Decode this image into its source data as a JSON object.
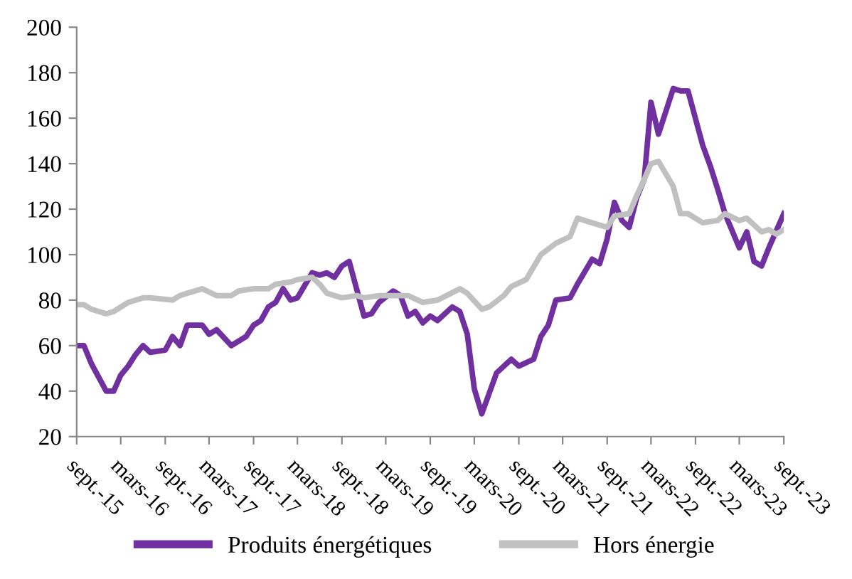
{
  "chart_data": {
    "type": "line",
    "xlim": [
      "2015-09",
      "2023-09"
    ],
    "xticks": [
      {
        "value": "2015-09",
        "label": "sept.-15"
      },
      {
        "value": "2016-03",
        "label": "mars-16"
      },
      {
        "value": "2016-09",
        "label": "sept.-16"
      },
      {
        "value": "2017-03",
        "label": "mars-17"
      },
      {
        "value": "2017-09",
        "label": "sept.-17"
      },
      {
        "value": "2018-03",
        "label": "mars-18"
      },
      {
        "value": "2018-09",
        "label": "sept.-18"
      },
      {
        "value": "2019-03",
        "label": "mars-19"
      },
      {
        "value": "2019-09",
        "label": "sept.-19"
      },
      {
        "value": "2020-03",
        "label": "mars-20"
      },
      {
        "value": "2020-09",
        "label": "sept.-20"
      },
      {
        "value": "2021-03",
        "label": "mars-21"
      },
      {
        "value": "2021-09",
        "label": "sept.-21"
      },
      {
        "value": "2022-03",
        "label": "mars-22"
      },
      {
        "value": "2022-09",
        "label": "sept.-22"
      },
      {
        "value": "2023-03",
        "label": "mars-23"
      },
      {
        "value": "2023-09",
        "label": "sept.-23"
      }
    ],
    "ylim": [
      20,
      200
    ],
    "yticks": [
      20,
      40,
      60,
      80,
      100,
      120,
      140,
      160,
      180,
      200
    ],
    "grid": false,
    "legend": "bottom",
    "marker": "none",
    "line_style": "solid",
    "series": [
      {
        "name": "Produits énergétiques",
        "color": "#7030a0",
        "x": [
          "2015-09",
          "2015-10",
          "2015-11",
          "2016-01",
          "2016-02",
          "2016-03",
          "2016-04",
          "2016-05",
          "2016-06",
          "2016-07",
          "2016-09",
          "2016-10",
          "2016-11",
          "2016-12",
          "2017-02",
          "2017-03",
          "2017-04",
          "2017-06",
          "2017-08",
          "2017-09",
          "2017-10",
          "2017-11",
          "2017-12",
          "2018-01",
          "2018-02",
          "2018-03",
          "2018-05",
          "2018-06",
          "2018-07",
          "2018-08",
          "2018-09",
          "2018-10",
          "2018-12",
          "2019-01",
          "2019-02",
          "2019-04",
          "2019-05",
          "2019-06",
          "2019-07",
          "2019-08",
          "2019-09",
          "2019-10",
          "2019-12",
          "2020-01",
          "2020-02",
          "2020-03",
          "2020-04",
          "2020-06",
          "2020-08",
          "2020-09",
          "2020-11",
          "2020-12",
          "2021-01",
          "2021-02",
          "2021-04",
          "2021-05",
          "2021-07",
          "2021-08",
          "2021-09",
          "2021-10",
          "2021-11",
          "2021-12",
          "2022-01",
          "2022-02",
          "2022-03",
          "2022-04",
          "2022-06",
          "2022-07",
          "2022-08",
          "2022-10",
          "2022-11",
          "2022-12",
          "2023-01",
          "2023-03",
          "2023-04",
          "2023-05",
          "2023-06",
          "2023-07",
          "2023-09"
        ],
        "values": [
          60,
          60,
          52,
          40,
          40,
          47,
          51,
          56,
          60,
          57,
          58,
          64,
          60,
          69,
          69,
          65,
          67,
          60,
          64,
          69,
          71,
          77,
          79,
          85,
          80,
          81,
          92,
          91,
          92,
          90,
          95,
          97,
          73,
          74,
          79,
          84,
          82,
          73,
          75,
          70,
          73,
          71,
          77,
          75,
          65,
          41,
          30,
          48,
          54,
          51,
          54,
          64,
          69,
          80,
          81,
          87,
          98,
          96,
          107,
          123,
          115,
          112,
          125,
          133,
          167,
          153,
          173,
          172,
          172,
          148,
          139,
          129,
          118,
          103,
          110,
          97,
          95,
          103,
          118
        ]
      },
      {
        "name": "Hors énergie",
        "color": "#c0c0c0",
        "x": [
          "2015-09",
          "2015-10",
          "2015-11",
          "2016-01",
          "2016-02",
          "2016-04",
          "2016-06",
          "2016-07",
          "2016-10",
          "2016-11",
          "2016-12",
          "2017-02",
          "2017-04",
          "2017-06",
          "2017-07",
          "2017-09",
          "2017-11",
          "2017-12",
          "2018-02",
          "2018-03",
          "2018-05",
          "2018-06",
          "2018-07",
          "2018-09",
          "2018-11",
          "2018-12",
          "2019-02",
          "2019-04",
          "2019-06",
          "2019-08",
          "2019-10",
          "2020-01",
          "2020-02",
          "2020-04",
          "2020-05",
          "2020-07",
          "2020-08",
          "2020-10",
          "2020-12",
          "2021-02",
          "2021-04",
          "2021-05",
          "2021-07",
          "2021-09",
          "2021-10",
          "2021-12",
          "2022-01",
          "2022-02",
          "2022-03",
          "2022-04",
          "2022-06",
          "2022-07",
          "2022-08",
          "2022-10",
          "2022-12",
          "2023-01",
          "2023-03",
          "2023-04",
          "2023-06",
          "2023-07",
          "2023-08",
          "2023-09"
        ],
        "values": [
          78,
          78,
          76,
          74,
          75,
          79,
          81,
          81,
          80,
          82,
          83,
          85,
          82,
          82,
          84,
          85,
          85,
          87,
          88,
          89,
          90,
          87,
          83,
          81,
          82,
          81,
          82,
          82,
          82,
          79,
          80,
          85,
          83,
          76,
          77,
          82,
          86,
          89,
          100,
          105,
          108,
          116,
          114,
          112,
          117,
          118,
          126,
          133,
          140,
          141,
          130,
          118,
          118,
          114,
          115,
          118,
          115,
          116,
          110,
          111,
          109,
          111
        ]
      }
    ]
  }
}
